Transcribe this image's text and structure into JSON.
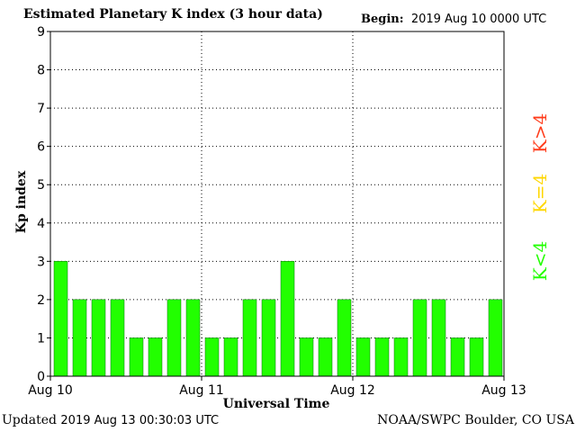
{
  "header": {
    "title": "Estimated Planetary K index (3 hour data)",
    "begin_label": "Begin:",
    "begin_value": "2019 Aug 10 0000 UTC"
  },
  "footer": {
    "updated_label": "Updated",
    "updated_value": "2019 Aug 13 00:30:03 UTC",
    "source": "NOAA/SWPC Boulder, CO USA"
  },
  "legend": {
    "below": "K<4",
    "equal": "K=4",
    "above": "K>4",
    "colors": {
      "below": "#22ff00",
      "equal": "#ffd700",
      "above": "#ff3b1a"
    }
  },
  "chart_data": {
    "type": "bar",
    "title": "Estimated Planetary K index (3 hour data)",
    "xlabel": "Universal Time",
    "ylabel": "Kp index",
    "ylim": [
      0,
      9
    ],
    "yticks": [
      "0",
      "1",
      "2",
      "3",
      "4",
      "5",
      "6",
      "7",
      "8",
      "9"
    ],
    "xticks": [
      "Aug 10",
      "Aug 11",
      "Aug 12",
      "Aug 13"
    ],
    "values": [
      3,
      2,
      2,
      2,
      1,
      1,
      2,
      2,
      1,
      1,
      2,
      2,
      3,
      1,
      1,
      2,
      1,
      1,
      1,
      2,
      2,
      1,
      1,
      2
    ],
    "bar_color": "#22ff00",
    "grid": "dotted"
  }
}
